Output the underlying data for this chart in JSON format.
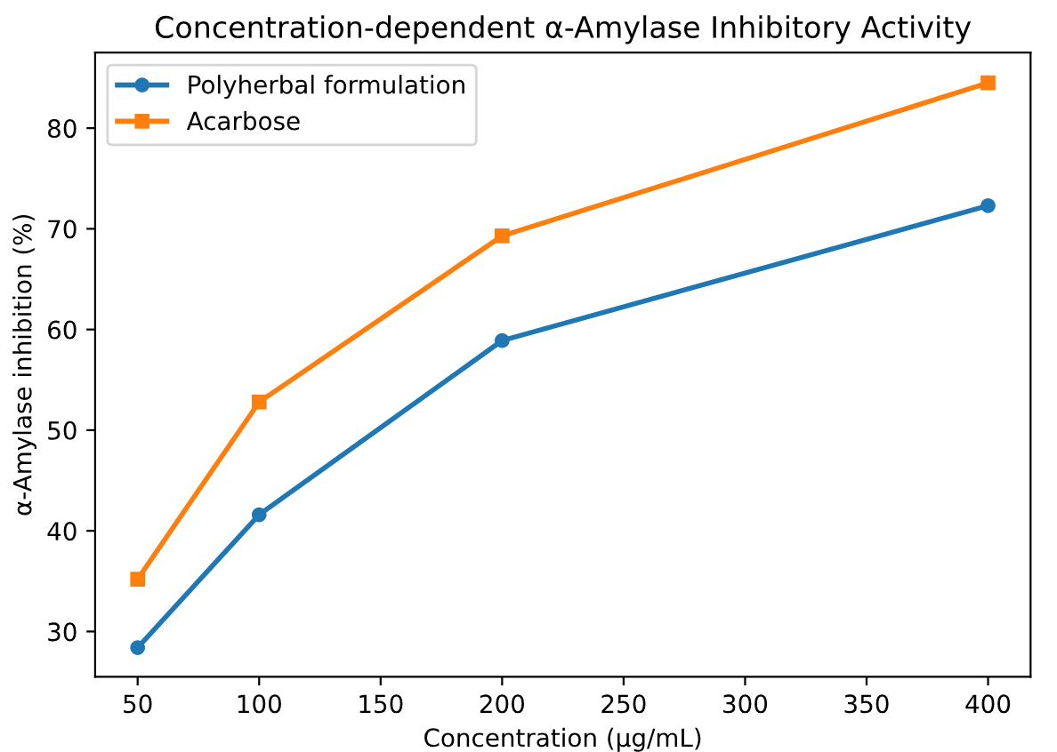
{
  "chart_data": {
    "type": "line",
    "title": "Concentration-dependent α-Amylase Inhibitory Activity",
    "xlabel": "Concentration (µg/mL)",
    "ylabel": "α-Amylase inhibition (%)",
    "x": [
      50,
      100,
      200,
      400
    ],
    "series": [
      {
        "name": "Polyherbal formulation",
        "color": "#1f77b4",
        "marker": "circle",
        "values": [
          28.4,
          41.6,
          58.9,
          72.3
        ]
      },
      {
        "name": "Acarbose",
        "color": "#ff7f0e",
        "marker": "square",
        "values": [
          35.2,
          52.8,
          69.3,
          84.5
        ]
      }
    ],
    "xlim": [
      32.5,
      417.5
    ],
    "xticks": [
      50,
      100,
      150,
      200,
      250,
      300,
      350,
      400
    ],
    "ylim": [
      25.5,
      87.5
    ],
    "yticks": [
      30,
      40,
      50,
      60,
      70,
      80
    ],
    "legend": "top left",
    "grid": false,
    "line_style": "solid"
  }
}
